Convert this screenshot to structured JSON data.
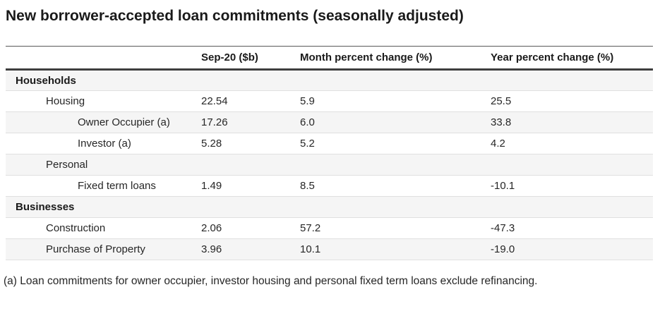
{
  "colors": {
    "title_text": "#1a1a1a",
    "body_text": "#262626",
    "row_stripe": "#f5f5f5",
    "row_divider": "#e0e0e0",
    "header_rule_top": "#595959",
    "header_rule_bottom": "#3e3e3e",
    "background": "#ffffff"
  },
  "chart_data": {
    "type": "table",
    "title": "New borrower-accepted loan commitments (seasonally adjusted)",
    "columns": [
      "",
      "Sep-20 ($b)",
      "Month percent change (%)",
      "Year percent change (%)"
    ],
    "rows": [
      {
        "label": "Households",
        "level": 0,
        "values": [
          "",
          "",
          ""
        ]
      },
      {
        "label": "Housing",
        "level": 1,
        "values": [
          "22.54",
          "5.9",
          "25.5"
        ]
      },
      {
        "label": "Owner Occupier (a)",
        "level": 2,
        "values": [
          "17.26",
          "6.0",
          "33.8"
        ]
      },
      {
        "label": "Investor (a)",
        "level": 2,
        "values": [
          "5.28",
          "5.2",
          "4.2"
        ]
      },
      {
        "label": "Personal",
        "level": 1,
        "values": [
          "",
          "",
          ""
        ]
      },
      {
        "label": "Fixed term loans",
        "level": 2,
        "values": [
          "1.49",
          "8.5",
          "-10.1"
        ]
      },
      {
        "label": "Businesses",
        "level": 0,
        "values": [
          "",
          "",
          ""
        ]
      },
      {
        "label": "Construction",
        "level": 1,
        "values": [
          "2.06",
          "57.2",
          "-47.3"
        ]
      },
      {
        "label": "Purchase of Property",
        "level": 1,
        "values": [
          "3.96",
          "10.1",
          "-19.0"
        ]
      }
    ],
    "footnote": "(a) Loan commitments for owner occupier, investor housing and personal fixed term loans exclude refinancing.",
    "layout_hints": {
      "striped_rows": "odd rows shaded",
      "value_alignment": "left"
    }
  }
}
